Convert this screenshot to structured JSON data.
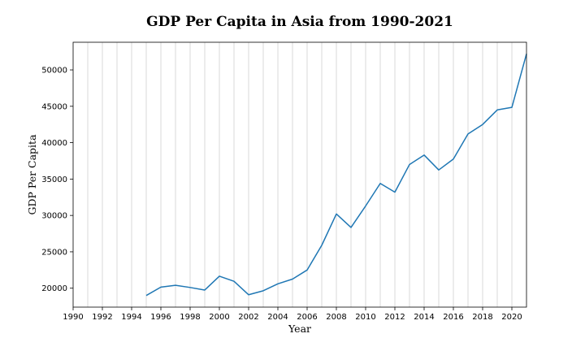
{
  "chart_data": {
    "type": "line",
    "title": "GDP Per Capita in Asia from 1990-2021",
    "xlabel": "Year",
    "ylabel": "GDP Per Capita",
    "xlim": [
      1990,
      2021
    ],
    "ylim": [
      17400,
      53800
    ],
    "grid": "vertical, every year",
    "xticks": [
      1990,
      1992,
      1994,
      1996,
      1998,
      2000,
      2002,
      2004,
      2006,
      2008,
      2010,
      2012,
      2014,
      2016,
      2018,
      2020
    ],
    "yticks": [
      20000,
      25000,
      30000,
      35000,
      40000,
      45000,
      50000
    ],
    "series": [
      {
        "name": "GDP Per Capita",
        "color": "#1f77b4",
        "x": [
          1995,
          1996,
          1997,
          1998,
          1999,
          2000,
          2001,
          2002,
          2003,
          2004,
          2005,
          2006,
          2007,
          2008,
          2009,
          2010,
          2011,
          2012,
          2013,
          2014,
          2015,
          2016,
          2017,
          2018,
          2019,
          2020,
          2021
        ],
        "y": [
          19000,
          20150,
          20400,
          20100,
          19750,
          21650,
          20950,
          19100,
          19650,
          20600,
          21250,
          22500,
          25900,
          30200,
          28350,
          31300,
          34400,
          33200,
          37000,
          38300,
          36250,
          37750,
          41200,
          42500,
          44500,
          44850,
          52200
        ]
      }
    ]
  }
}
